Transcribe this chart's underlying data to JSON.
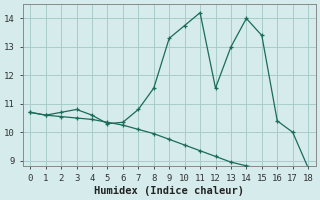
{
  "xlabel": "Humidex (Indice chaleur)",
  "background_color": "#d6ecec",
  "grid_color": "#a8cccc",
  "line_color": "#1a6b5a",
  "line1_x": [
    0,
    1,
    2,
    3,
    4,
    5,
    6,
    7,
    8,
    9,
    10,
    11,
    12,
    13,
    14,
    15,
    16,
    17,
    18
  ],
  "line1_y": [
    10.7,
    10.6,
    10.7,
    10.8,
    10.6,
    10.3,
    10.35,
    10.8,
    11.55,
    13.3,
    13.75,
    14.2,
    11.55,
    13.0,
    14.0,
    13.4,
    10.4,
    10.0,
    8.75
  ],
  "line2_x": [
    0,
    1,
    2,
    3,
    4,
    5,
    6,
    7,
    8,
    9,
    10,
    11,
    12,
    13,
    14,
    15,
    16,
    17,
    18
  ],
  "line2_y": [
    10.7,
    10.6,
    10.55,
    10.5,
    10.45,
    10.35,
    10.25,
    10.1,
    9.95,
    9.75,
    9.55,
    9.35,
    9.15,
    8.95,
    8.82,
    8.72,
    8.65,
    8.6,
    8.75
  ],
  "ylim": [
    8.8,
    14.5
  ],
  "xlim": [
    -0.5,
    18.5
  ],
  "yticks": [
    9,
    10,
    11,
    12,
    13,
    14
  ],
  "xticks": [
    0,
    1,
    2,
    3,
    4,
    5,
    6,
    7,
    8,
    9,
    10,
    11,
    12,
    13,
    14,
    15,
    16,
    17,
    18
  ],
  "tick_fontsize": 6.5,
  "xlabel_fontsize": 7.5
}
